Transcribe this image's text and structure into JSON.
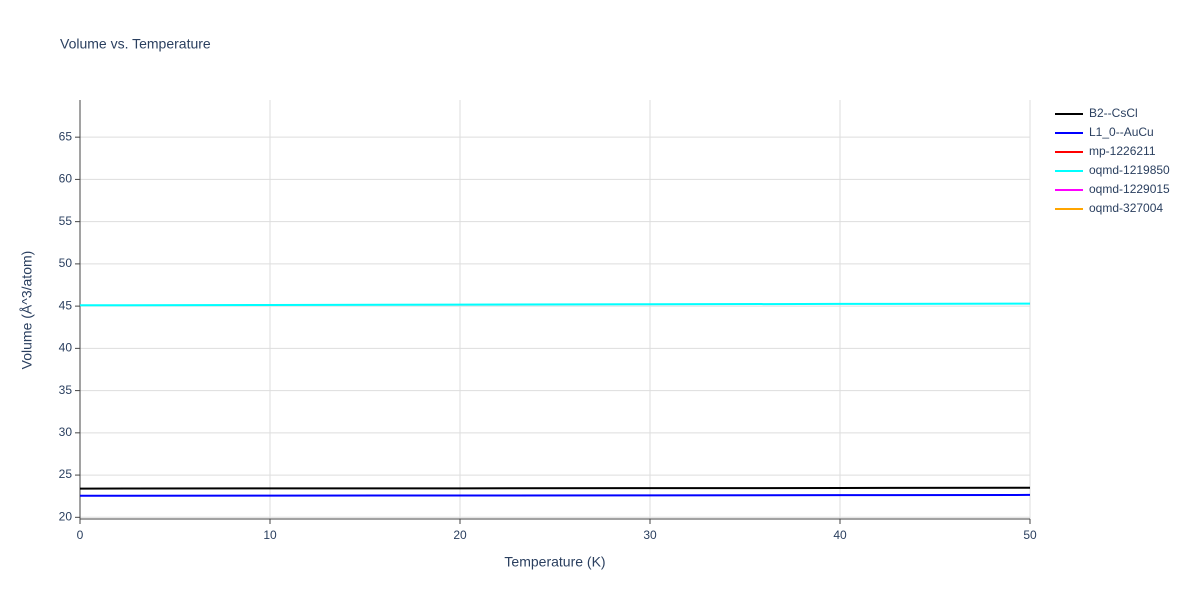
{
  "chart_data": {
    "type": "line",
    "title": "Volume vs. Temperature",
    "x_label": "Temperature (K)",
    "y_label": "Volume (Å^3/atom)",
    "x": [
      0,
      10,
      20,
      30,
      40,
      50
    ],
    "series": [
      {
        "name": "B2--CsCl",
        "color": "#000000",
        "values": [
          23.4,
          23.42,
          23.43,
          23.45,
          23.47,
          23.5
        ]
      },
      {
        "name": "L1_0--AuCu",
        "color": "#0000ff",
        "values": [
          22.55,
          22.57,
          22.58,
          22.6,
          22.62,
          22.65
        ]
      },
      {
        "name": "mp-1226211",
        "color": "#ff0000",
        "values": [
          null,
          null,
          null,
          null,
          null,
          null
        ]
      },
      {
        "name": "oqmd-1219850",
        "color": "#00ffff",
        "values": [
          45.1,
          45.14,
          45.18,
          45.22,
          45.26,
          45.3
        ]
      },
      {
        "name": "oqmd-1229015",
        "color": "#ff00ff",
        "values": [
          null,
          null,
          null,
          null,
          null,
          null
        ]
      },
      {
        "name": "oqmd-327004",
        "color": "#ffa500",
        "values": [
          null,
          null,
          null,
          null,
          null,
          null
        ]
      }
    ],
    "xlim": [
      0,
      50
    ],
    "xticks": [
      0,
      10,
      20,
      30,
      40,
      50
    ],
    "ylim": [
      19.8,
      69.4
    ],
    "yticks": [
      20,
      25,
      30,
      35,
      40,
      45,
      50,
      55,
      60,
      65
    ],
    "grid": true
  }
}
